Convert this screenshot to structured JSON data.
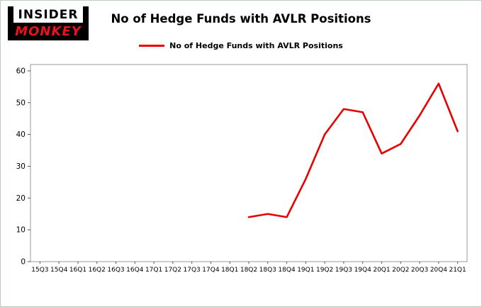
{
  "logo": {
    "line1": "INSIDER",
    "line2": "MONKEY"
  },
  "title": "No of Hedge Funds with AVLR Positions",
  "legend": {
    "label": "No of Hedge Funds with AVLR Positions"
  },
  "colors": {
    "line": "#e60000",
    "logo_red": "#e8131b",
    "page_border": "#bfcabf"
  },
  "chart_data": {
    "type": "line",
    "title": "No of Hedge Funds with AVLR Positions",
    "xlabel": "",
    "ylabel": "",
    "categories": [
      "15Q3",
      "15Q4",
      "16Q1",
      "16Q2",
      "16Q3",
      "16Q4",
      "17Q1",
      "17Q2",
      "17Q3",
      "17Q4",
      "18Q1",
      "18Q2",
      "18Q3",
      "18Q4",
      "19Q1",
      "19Q2",
      "19Q3",
      "19Q4",
      "20Q1",
      "20Q2",
      "20Q3",
      "20Q4",
      "21Q1"
    ],
    "series": [
      {
        "name": "No of Hedge Funds with AVLR Positions",
        "color": "#e60000",
        "values": [
          null,
          null,
          null,
          null,
          null,
          null,
          null,
          null,
          null,
          null,
          null,
          14,
          15,
          14,
          26,
          40,
          48,
          47,
          34,
          37,
          46,
          56,
          41
        ]
      }
    ],
    "ylim": [
      0,
      62
    ],
    "yticks": [
      0,
      10,
      20,
      30,
      40,
      50,
      60
    ],
    "grid": false,
    "legend_position": "top"
  }
}
